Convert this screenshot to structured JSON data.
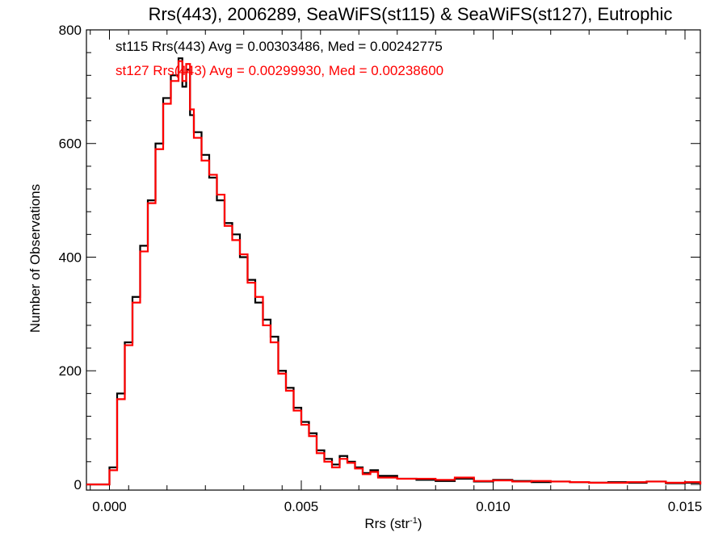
{
  "chart_data": {
    "type": "line",
    "title": "Rrs(443), 2006289, SeaWiFS(st115) & SeaWiFS(st127), Eutrophic",
    "xlabel": "Rrs (str",
    "xlabel_sup": "-1",
    "xlabel_end": ")",
    "ylabel": "Number of Observations",
    "xlim": [
      -0.0006,
      0.0154
    ],
    "ylim": [
      -10,
      800
    ],
    "xticks": [
      0.0,
      0.005,
      0.01,
      0.015
    ],
    "xtick_labels": [
      "0.000",
      "0.005",
      "0.010",
      "0.015"
    ],
    "yticks": [
      0,
      200,
      400,
      600,
      800
    ],
    "ytick_labels": [
      "0",
      "200",
      "400",
      "600",
      "800"
    ],
    "annotations": [
      "st115 Rrs(443) Avg = 0.00303486, Med = 0.00242775",
      "st127 Rrs(443) Avg = 0.00299930, Med = 0.00238600"
    ],
    "series": [
      {
        "color": "#000000",
        "x": [
          -0.0006,
          -0.0001,
          0.0,
          0.0002,
          0.0004,
          0.0006,
          0.0008,
          0.001,
          0.0012,
          0.0014,
          0.0016,
          0.0018,
          0.0019,
          0.002,
          0.0021,
          0.0022,
          0.0024,
          0.0026,
          0.0028,
          0.003,
          0.0032,
          0.0034,
          0.0036,
          0.0038,
          0.004,
          0.0042,
          0.0044,
          0.0046,
          0.0048,
          0.005,
          0.0052,
          0.0054,
          0.0056,
          0.0058,
          0.006,
          0.0062,
          0.0064,
          0.0066,
          0.0068,
          0.007,
          0.0075,
          0.008,
          0.0085,
          0.009,
          0.0095,
          0.01,
          0.0105,
          0.011,
          0.0115,
          0.012,
          0.0125,
          0.013,
          0.0135,
          0.014,
          0.0145,
          0.015,
          0.0154
        ],
        "y": [
          0,
          0,
          30,
          160,
          250,
          330,
          420,
          500,
          600,
          680,
          720,
          750,
          700,
          730,
          650,
          620,
          580,
          540,
          500,
          460,
          440,
          400,
          360,
          320,
          290,
          260,
          200,
          170,
          135,
          110,
          90,
          60,
          45,
          35,
          50,
          40,
          30,
          20,
          25,
          15,
          10,
          8,
          6,
          10,
          5,
          8,
          6,
          4,
          5,
          4,
          3,
          4,
          3,
          5,
          2,
          3,
          0
        ]
      },
      {
        "color": "#ff0000",
        "x": [
          -0.0006,
          -0.0001,
          0.0,
          0.0002,
          0.0004,
          0.0006,
          0.0008,
          0.001,
          0.0012,
          0.0014,
          0.0016,
          0.0018,
          0.0019,
          0.002,
          0.0021,
          0.0022,
          0.0024,
          0.0026,
          0.0028,
          0.003,
          0.0032,
          0.0034,
          0.0036,
          0.0038,
          0.004,
          0.0042,
          0.0044,
          0.0046,
          0.0048,
          0.005,
          0.0052,
          0.0054,
          0.0056,
          0.0058,
          0.006,
          0.0062,
          0.0064,
          0.0066,
          0.0068,
          0.007,
          0.0075,
          0.008,
          0.0085,
          0.009,
          0.0095,
          0.01,
          0.0105,
          0.011,
          0.0115,
          0.012,
          0.0125,
          0.013,
          0.0135,
          0.014,
          0.0145,
          0.015,
          0.0154
        ],
        "y": [
          0,
          0,
          25,
          150,
          245,
          320,
          410,
          495,
          590,
          670,
          710,
          745,
          710,
          740,
          660,
          610,
          570,
          545,
          510,
          455,
          430,
          405,
          355,
          330,
          280,
          250,
          195,
          165,
          130,
          105,
          85,
          55,
          40,
          30,
          45,
          38,
          28,
          18,
          22,
          12,
          10,
          10,
          8,
          12,
          6,
          7,
          5,
          6,
          5,
          4,
          3,
          3,
          4,
          5,
          3,
          4,
          0
        ]
      }
    ]
  }
}
